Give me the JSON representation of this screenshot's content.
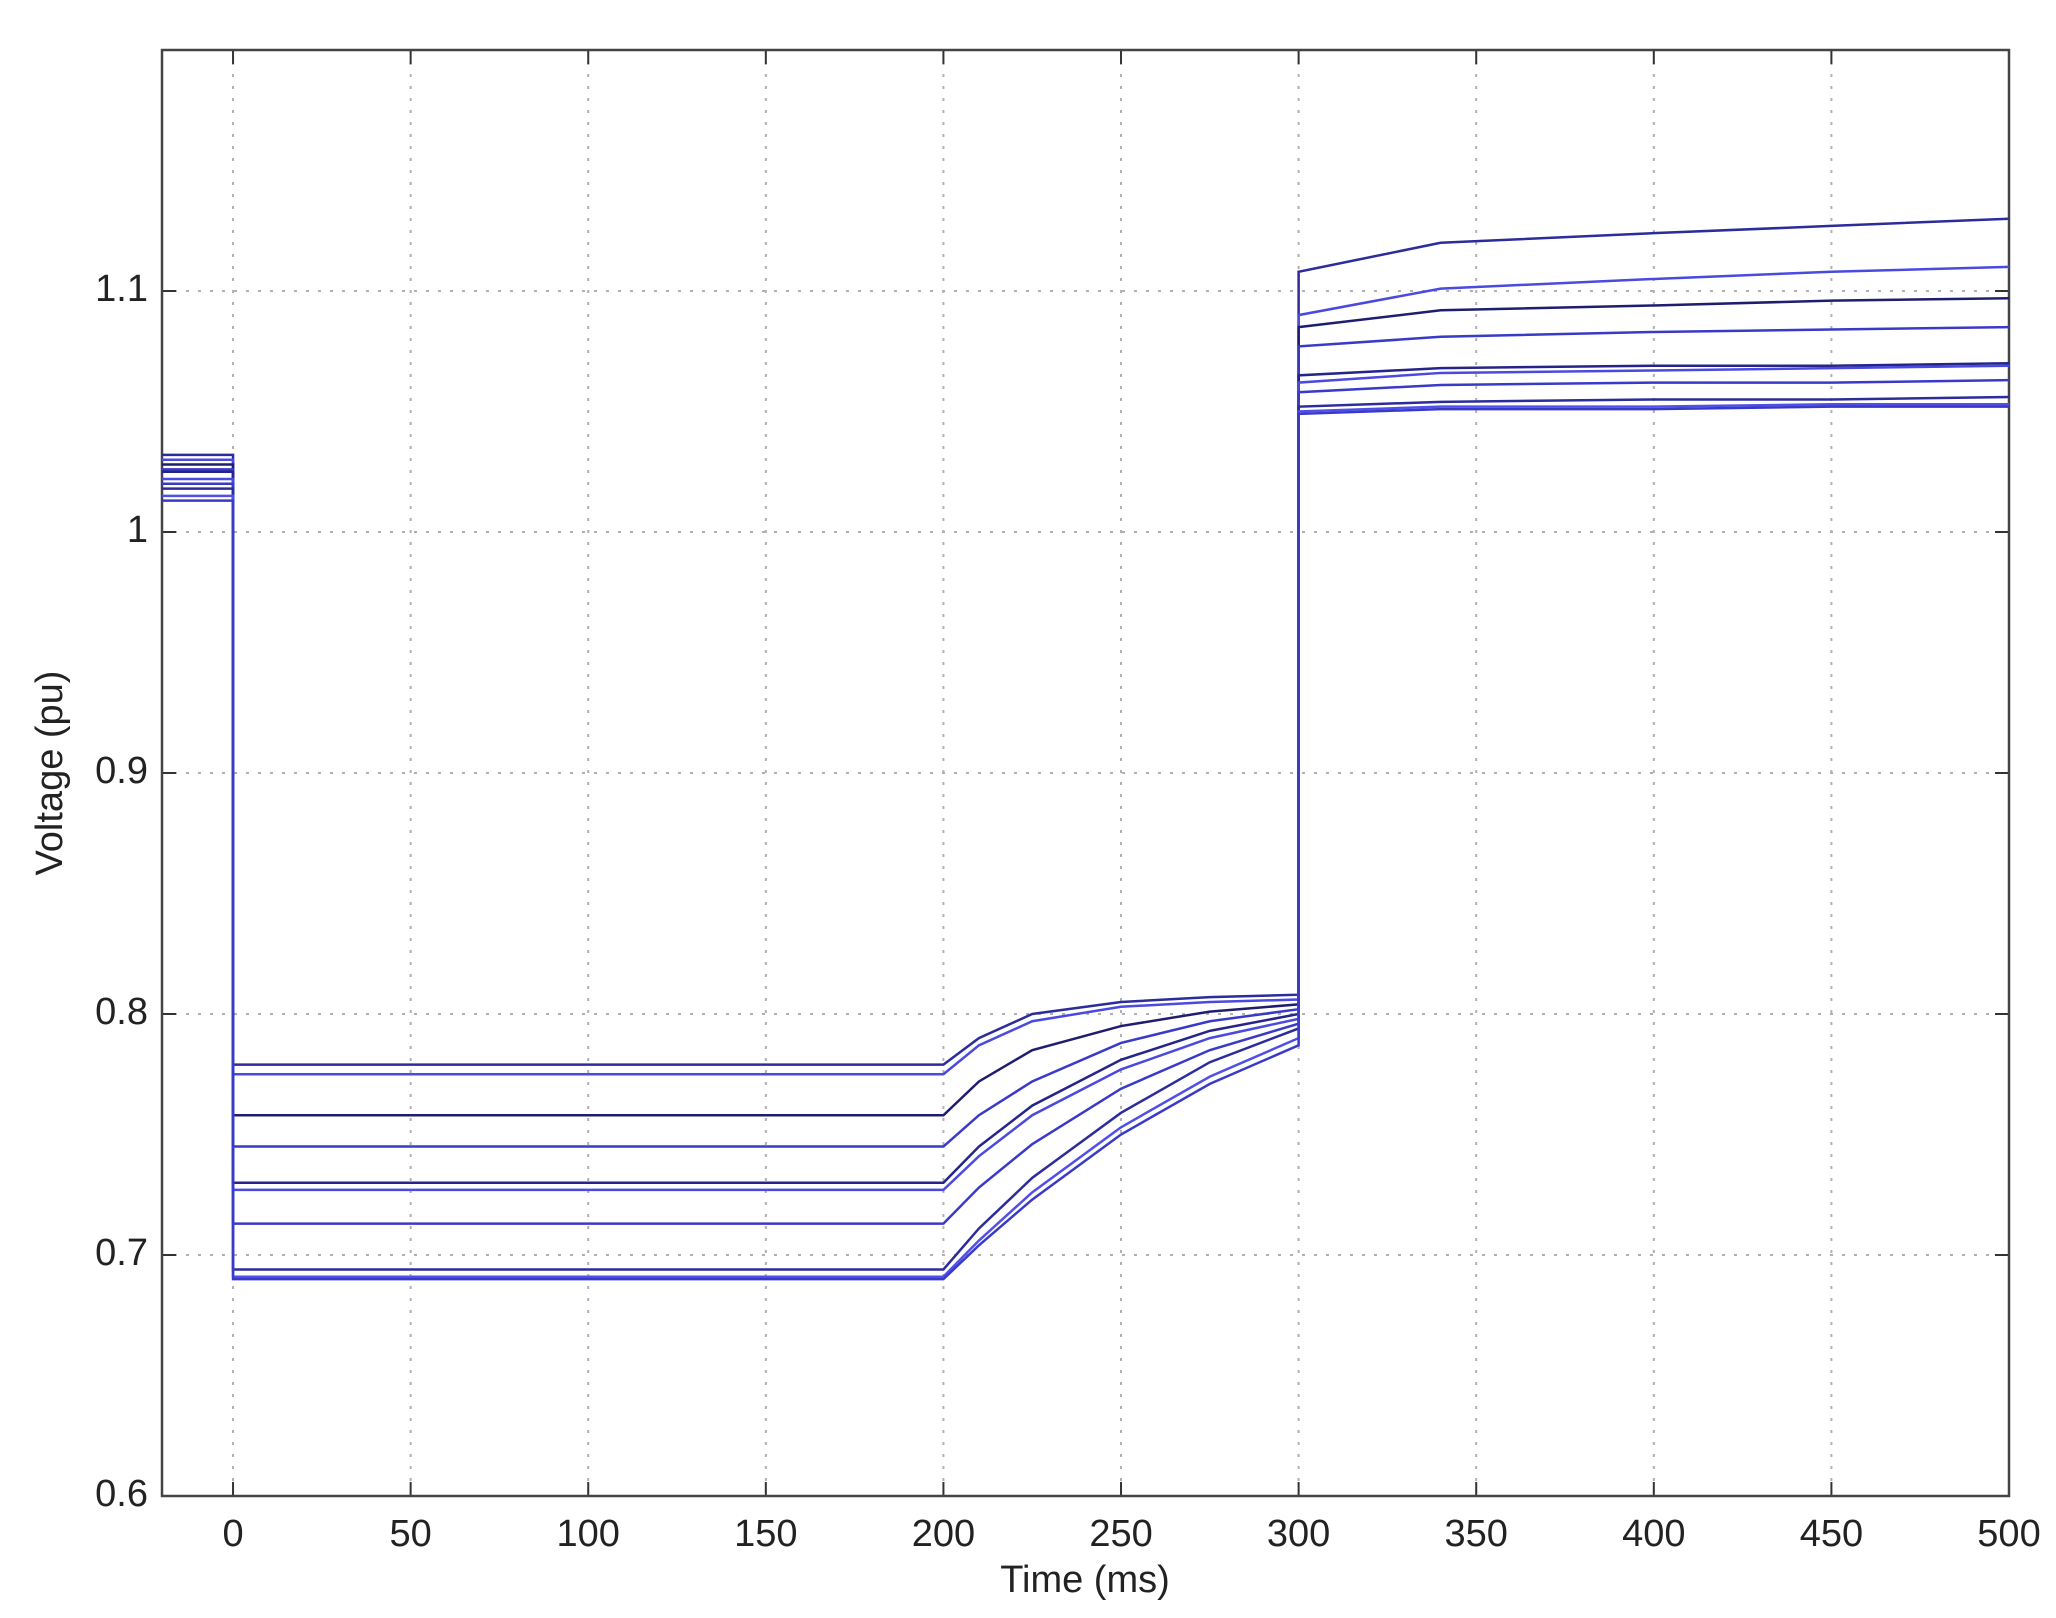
{
  "chart_data": {
    "type": "line",
    "xlabel": "Time (ms)",
    "ylabel": "Voltage (pu)",
    "x": [
      -20,
      0,
      0,
      200,
      210,
      225,
      250,
      275,
      300,
      300,
      340,
      400,
      450,
      500
    ],
    "series": [
      {
        "color": "#2c2c9a",
        "values": [
          1.032,
          1.032,
          0.779,
          0.779,
          0.79,
          0.8,
          0.805,
          0.807,
          0.808,
          1.108,
          1.12,
          1.124,
          1.127,
          1.13
        ]
      },
      {
        "color": "#4a4ae0",
        "values": [
          1.03,
          1.03,
          0.775,
          0.775,
          0.787,
          0.797,
          0.803,
          0.805,
          0.806,
          1.09,
          1.101,
          1.105,
          1.108,
          1.11
        ]
      },
      {
        "color": "#1e1e70",
        "values": [
          1.028,
          1.028,
          0.758,
          0.758,
          0.772,
          0.785,
          0.795,
          0.801,
          0.804,
          1.085,
          1.092,
          1.094,
          1.096,
          1.097
        ]
      },
      {
        "color": "#3a3ac8",
        "values": [
          1.026,
          1.026,
          0.745,
          0.745,
          0.758,
          0.772,
          0.788,
          0.797,
          0.802,
          1.077,
          1.081,
          1.083,
          1.084,
          1.085
        ]
      },
      {
        "color": "#24248a",
        "values": [
          1.025,
          1.025,
          0.73,
          0.73,
          0.745,
          0.762,
          0.781,
          0.793,
          0.8,
          1.065,
          1.068,
          1.069,
          1.069,
          1.07
        ]
      },
      {
        "color": "#4a4ae0",
        "values": [
          1.022,
          1.022,
          0.727,
          0.727,
          0.741,
          0.758,
          0.777,
          0.79,
          0.798,
          1.062,
          1.066,
          1.067,
          1.068,
          1.069
        ]
      },
      {
        "color": "#3a3ac8",
        "values": [
          1.02,
          1.02,
          0.713,
          0.713,
          0.728,
          0.746,
          0.769,
          0.785,
          0.796,
          1.058,
          1.061,
          1.062,
          1.062,
          1.063
        ]
      },
      {
        "color": "#2c2c9a",
        "values": [
          1.018,
          1.018,
          0.694,
          0.694,
          0.711,
          0.732,
          0.759,
          0.78,
          0.794,
          1.052,
          1.054,
          1.055,
          1.055,
          1.056
        ]
      },
      {
        "color": "#5050e8",
        "values": [
          1.015,
          1.015,
          0.691,
          0.691,
          0.706,
          0.726,
          0.753,
          0.774,
          0.79,
          1.05,
          1.052,
          1.052,
          1.053,
          1.053
        ]
      },
      {
        "color": "#3a3ac8",
        "values": [
          1.013,
          1.013,
          0.69,
          0.69,
          0.704,
          0.723,
          0.75,
          0.771,
          0.787,
          1.049,
          1.051,
          1.051,
          1.052,
          1.052
        ]
      }
    ],
    "xlim": [
      -20,
      500
    ],
    "xticks": [
      0,
      50,
      100,
      150,
      200,
      250,
      300,
      350,
      400,
      450,
      500
    ],
    "ylim": [
      0.6,
      1.2
    ],
    "yticks": [
      0.6,
      0.7,
      0.8,
      0.9,
      1,
      1.1
    ],
    "grid": true
  }
}
